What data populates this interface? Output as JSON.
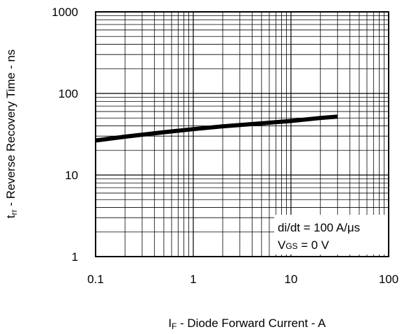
{
  "chart_data": {
    "type": "line",
    "title": "",
    "xlabel": {
      "main": "I",
      "sub": "F",
      "rest": " - Diode Forward Current - A"
    },
    "ylabel": {
      "main": "t",
      "sub": "rr",
      "rest": " - Reverse Recovery Time - ns"
    },
    "xscale": "log",
    "yscale": "log",
    "xlim": [
      0.1,
      100
    ],
    "ylim": [
      1,
      1000
    ],
    "x_tick_labels": [
      "0.1",
      "1",
      "10",
      "100"
    ],
    "y_tick_labels": [
      "1",
      "10",
      "100",
      "1000"
    ],
    "grid": true,
    "annotations": {
      "line1": "di/dt = 100 A/μs",
      "line2": {
        "main": "V",
        "sub": "GS",
        "rest": " = 0 V"
      }
    },
    "series": [
      {
        "x": [
          0.1,
          0.2,
          0.5,
          1,
          2,
          5,
          10,
          20,
          30
        ],
        "y": [
          26.5,
          29.5,
          33.5,
          36.5,
          39.5,
          43,
          46,
          50,
          52
        ]
      }
    ]
  }
}
